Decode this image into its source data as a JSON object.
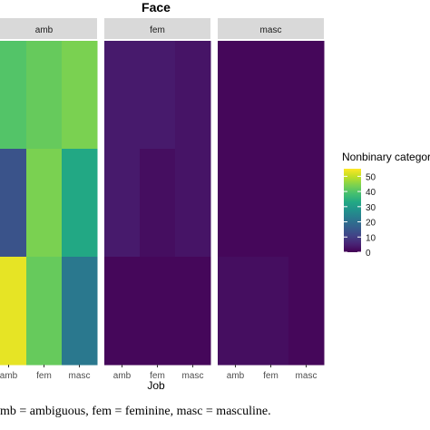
{
  "caption": "mb = ambiguous, fem = feminine, masc = masculine.",
  "chart_data": {
    "type": "heatmap",
    "title": "Face",
    "xlabel": "Job",
    "ylabel": "",
    "legend_title": "Nonbinary categor",
    "legend_ticks": [
      50,
      40,
      30,
      20,
      10,
      0
    ],
    "value_range": [
      0,
      55
    ],
    "colormap": "viridis",
    "x_categories": [
      "amb",
      "fem",
      "masc"
    ],
    "facets": [
      {
        "name": "amb",
        "x_labels": [
          "amb",
          "fem",
          "masc"
        ],
        "values": [
          [
            40,
            42,
            44
          ],
          [
            14,
            44,
            33
          ],
          [
            53,
            42,
            22
          ]
        ]
      },
      {
        "name": "fem",
        "x_labels": [
          "amb",
          "fem",
          "masc"
        ],
        "values": [
          [
            4,
            4,
            3
          ],
          [
            4,
            2,
            3
          ],
          [
            1,
            1,
            1
          ]
        ]
      },
      {
        "name": "masc",
        "x_labels": [
          "amb",
          "fem",
          "masc"
        ],
        "values": [
          [
            1,
            1,
            1
          ],
          [
            1,
            1,
            1
          ],
          [
            2,
            2,
            1
          ]
        ]
      }
    ],
    "panel_strip_color": "#d9d9d9",
    "panel_background": "#ebebeb",
    "legend_placement": "right",
    "grid": true
  }
}
